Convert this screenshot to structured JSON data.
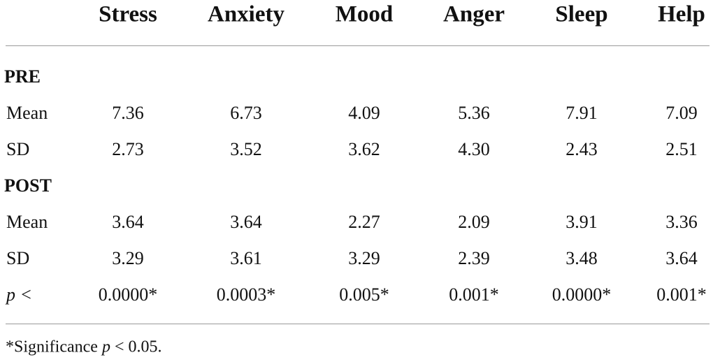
{
  "table": {
    "columns": [
      "Stress",
      "Anxiety",
      "Mood",
      "Anger",
      "Sleep",
      "Help"
    ],
    "sections": [
      {
        "title": "PRE",
        "rows": [
          {
            "label": "Mean",
            "cells": [
              "7.36",
              "6.73",
              "4.09",
              "5.36",
              "7.91",
              "7.09"
            ]
          },
          {
            "label": "SD",
            "cells": [
              "2.73",
              "3.52",
              "3.62",
              "4.30",
              "2.43",
              "2.51"
            ]
          }
        ]
      },
      {
        "title": "POST",
        "rows": [
          {
            "label": "Mean",
            "cells": [
              "3.64",
              "3.64",
              "2.27",
              "2.09",
              "3.91",
              "3.36"
            ]
          },
          {
            "label": "SD",
            "cells": [
              "3.29",
              "3.61",
              "3.29",
              "2.39",
              "3.48",
              "3.64"
            ]
          }
        ]
      }
    ],
    "p_row": {
      "label": "p <",
      "cells": [
        "0.0000*",
        "0.0003*",
        "0.005*",
        "0.001*",
        "0.0000*",
        "0.001*"
      ]
    }
  },
  "footnote": {
    "prefix": "*Significance",
    "variable": "p",
    "condition": "< 0.05."
  }
}
